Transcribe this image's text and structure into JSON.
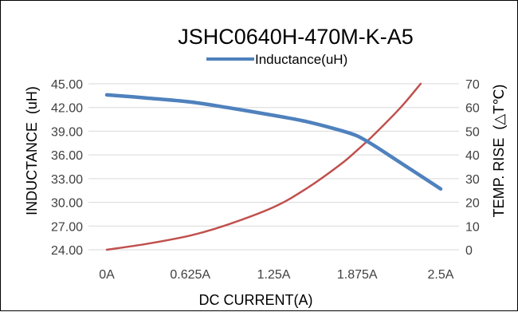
{
  "chart_data": {
    "type": "line",
    "title": "JSHC0640H-470M-K-A5",
    "xlabel": "DC  CURRENT(A)",
    "ylabel": "INDUCTANCE  (uH)",
    "y2label": "TEMP. RISE  (△T℃)",
    "categories": [
      "0A",
      "0.625A",
      "1.25A",
      "1.875A",
      "2.5A"
    ],
    "x_range": [
      0,
      2.5
    ],
    "ylim": [
      24,
      45
    ],
    "y_ticks": [
      "24.00",
      "27.00",
      "30.00",
      "33.00",
      "36.00",
      "39.00",
      "42.00",
      "45.00"
    ],
    "y2lim": [
      0,
      70
    ],
    "y2_ticks": [
      "0",
      "10",
      "20",
      "30",
      "40",
      "50",
      "60",
      "70"
    ],
    "grid": true,
    "legend_position": "top",
    "series": [
      {
        "name": "Inductance(uH)",
        "axis": "left",
        "color": "#4f81bd",
        "x": [
          0,
          0.3,
          0.625,
          0.9,
          1.25,
          1.5,
          1.75,
          1.875,
          2.0,
          2.2,
          2.5
        ],
        "values": [
          43.6,
          43.2,
          42.7,
          42.0,
          41.0,
          40.2,
          39.1,
          38.4,
          37.2,
          35.0,
          31.7
        ]
      },
      {
        "axis": "right",
        "color": "#c0504d",
        "x": [
          0,
          0.3,
          0.625,
          0.9,
          1.25,
          1.5,
          1.75,
          1.875,
          2.0,
          2.2,
          2.35
        ],
        "values": [
          0,
          2.5,
          6,
          10.5,
          18,
          26,
          36,
          42,
          48.5,
          60,
          70
        ]
      }
    ]
  }
}
